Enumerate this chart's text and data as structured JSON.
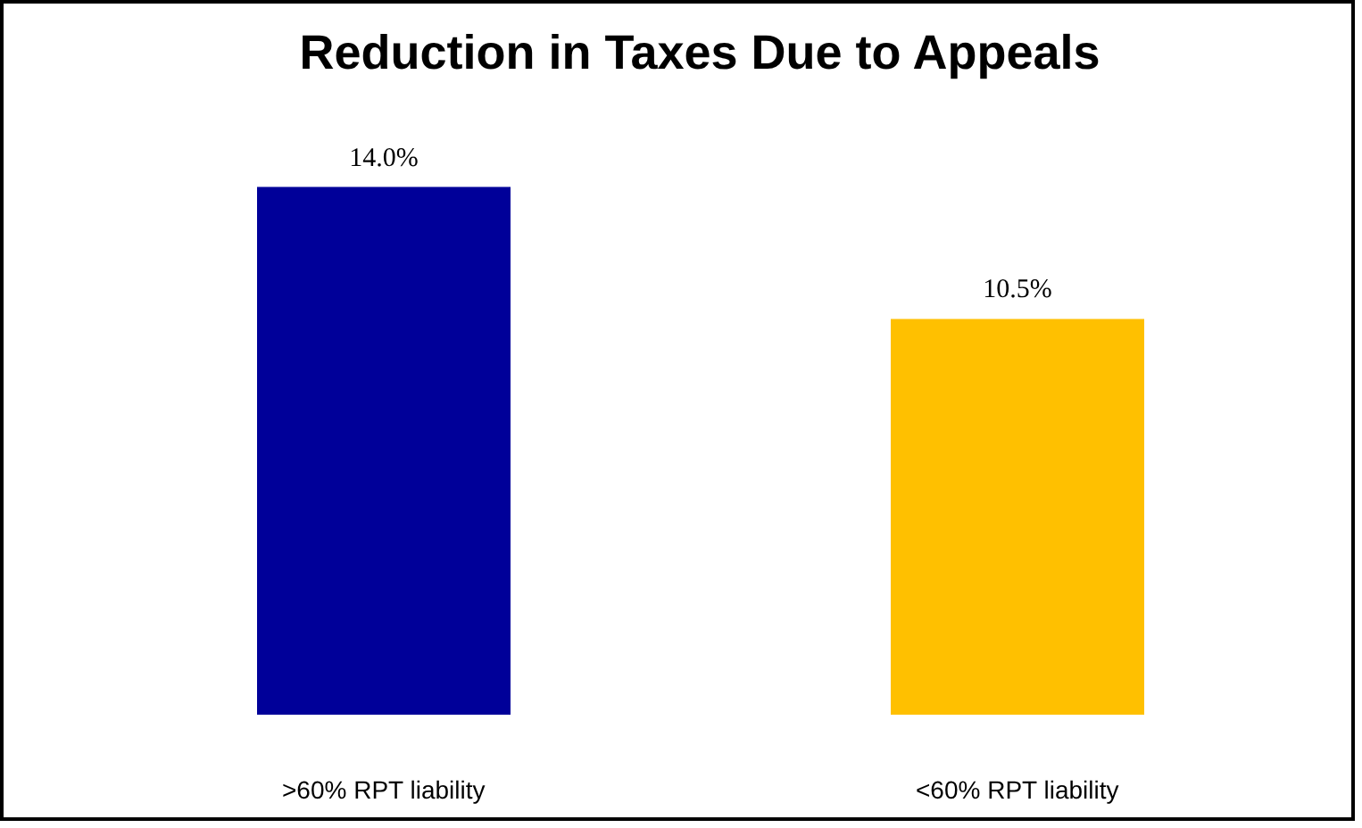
{
  "chart_data": {
    "type": "bar",
    "title": "Reduction in Taxes Due to Appeals",
    "categories": [
      ">60% RPT liability",
      "<60% RPT liability"
    ],
    "values": [
      14.0,
      10.5
    ],
    "colors": [
      "#000099",
      "#ffc000"
    ],
    "value_labels": [
      "14.0%",
      "10.5%"
    ],
    "grid": false
  }
}
